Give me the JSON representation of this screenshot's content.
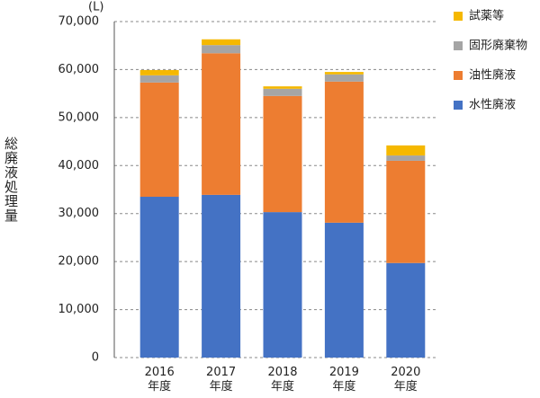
{
  "chart_data": {
    "type": "stacked_bar",
    "y_label": "総廃液処理量",
    "unit": "(L)",
    "categories": [
      "2016年度",
      "2017年度",
      "2018年度",
      "2019年度",
      "2020年度"
    ],
    "series": [
      {
        "name": "水性廃液",
        "color": "#4472c4",
        "values": [
          33500,
          33900,
          30300,
          28100,
          19700
        ]
      },
      {
        "name": "油性廃液",
        "color": "#ed7d31",
        "values": [
          23800,
          29500,
          24200,
          29400,
          21300
        ]
      },
      {
        "name": "固形廃棄物",
        "color": "#a5a5a5",
        "values": [
          1500,
          1700,
          1500,
          1500,
          1100
        ]
      },
      {
        "name": "試薬等",
        "color": "#f5b800",
        "values": [
          1100,
          1200,
          500,
          500,
          2100
        ]
      }
    ],
    "ylim": [
      0,
      70000
    ],
    "yticks": [
      0,
      {
        "value": 10000,
        "label": "10,000"
      },
      {
        "value": 20000,
        "label": "20,000"
      },
      {
        "value": 30000,
        "label": "30,000"
      },
      {
        "value": 40000,
        "label": "40,000"
      },
      {
        "value": 50000,
        "label": "50,000"
      },
      {
        "value": 60000,
        "label": "60,000"
      },
      {
        "value": 70000,
        "label": "70,000"
      }
    ],
    "grid": true,
    "legend": "right"
  }
}
